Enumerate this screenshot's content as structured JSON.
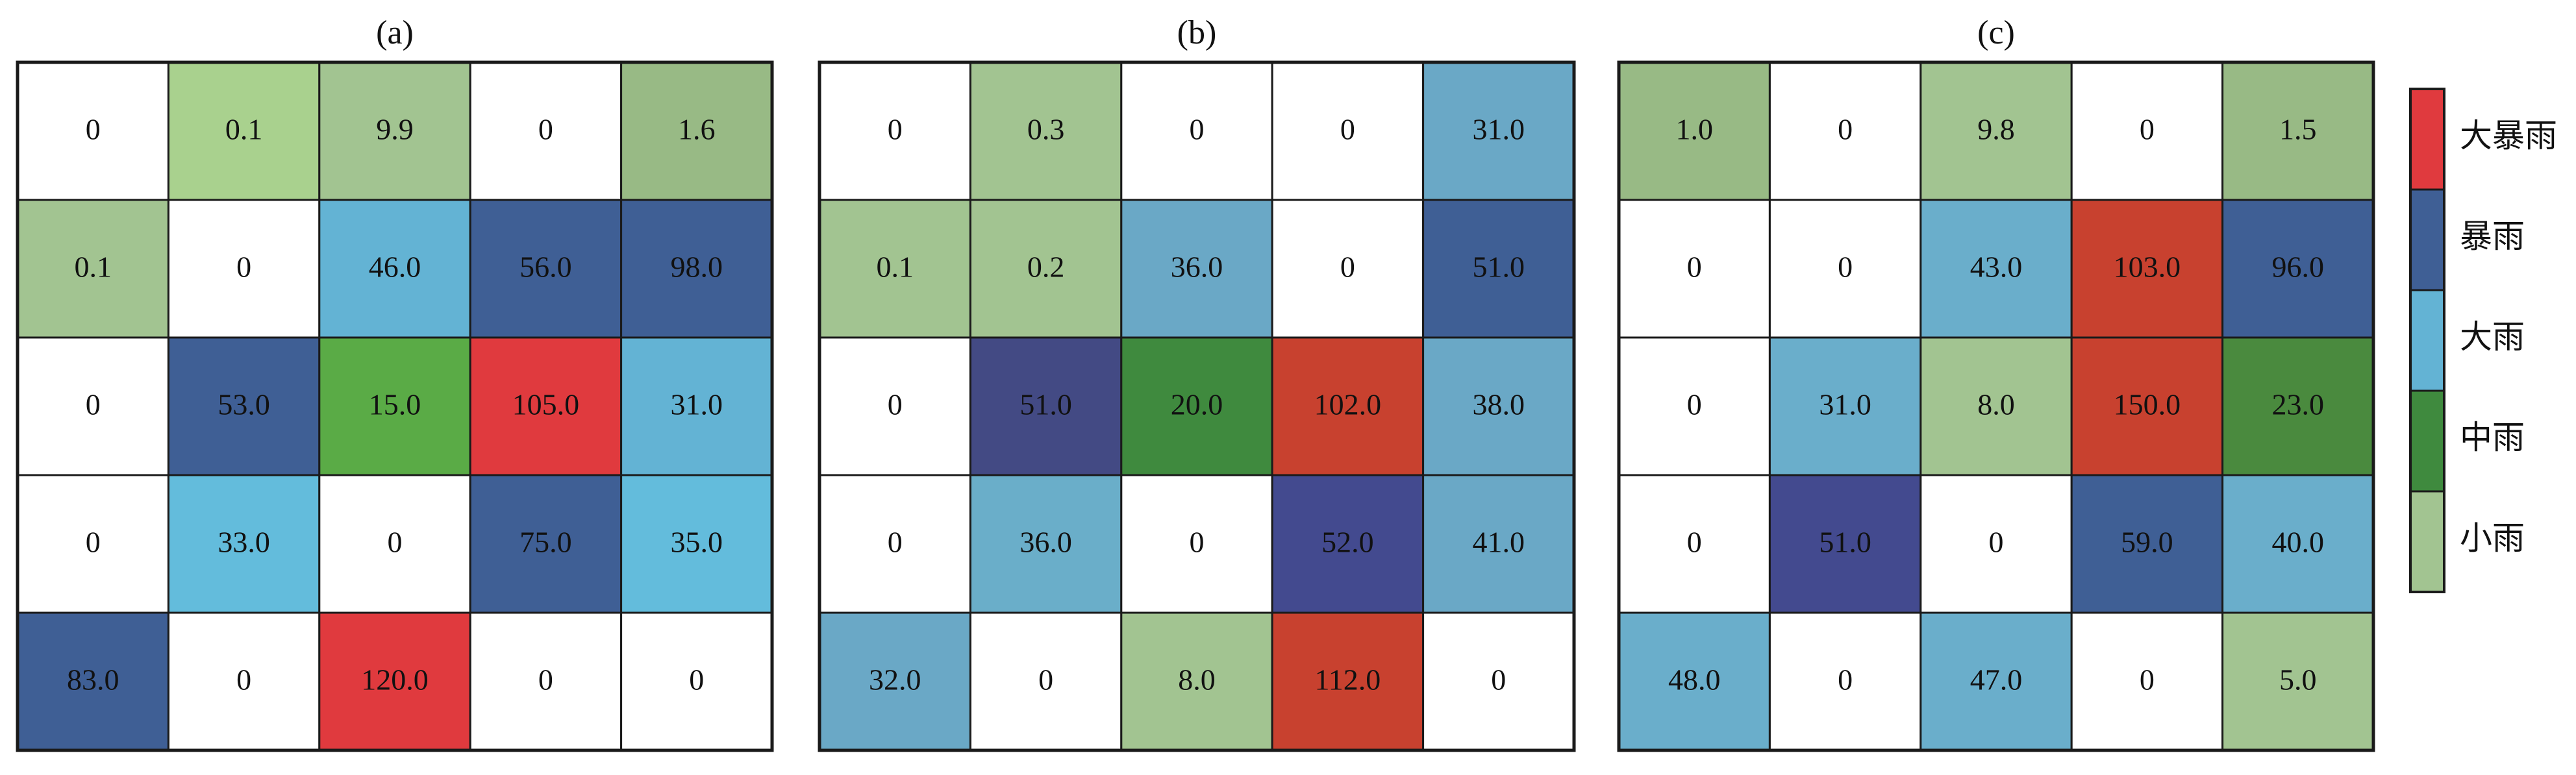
{
  "chart_data": {
    "type": "heatmap",
    "panels": [
      {
        "label": "(a)",
        "rows": [
          [
            "0",
            "0.1",
            "9.9",
            "0",
            "1.6"
          ],
          [
            "0.1",
            "0",
            "46.0",
            "56.0",
            "98.0"
          ],
          [
            "0",
            "53.0",
            "15.0",
            "105.0",
            "31.0"
          ],
          [
            "0",
            "33.0",
            "0",
            "75.0",
            "35.0"
          ],
          [
            "83.0",
            "0",
            "120.0",
            "0",
            "0"
          ]
        ],
        "colors": [
          [
            "#ffffff",
            "#a9d18e",
            "#a2c491",
            "#ffffff",
            "#98ba85"
          ],
          [
            "#a2c491",
            "#ffffff",
            "#63b3d4",
            "#3f5f95",
            "#3f5f95"
          ],
          [
            "#ffffff",
            "#3f5f95",
            "#5aab46",
            "#e03a3e",
            "#63b3d4"
          ],
          [
            "#ffffff",
            "#63bcdc",
            "#ffffff",
            "#3f5f95",
            "#63bcdc"
          ],
          [
            "#3f5f95",
            "#ffffff",
            "#e03a3e",
            "#ffffff",
            "#ffffff"
          ]
        ]
      },
      {
        "label": "(b)",
        "rows": [
          [
            "0",
            "0.3",
            "0",
            "0",
            "31.0"
          ],
          [
            "0.1",
            "0.2",
            "36.0",
            "0",
            "51.0"
          ],
          [
            "0",
            "51.0",
            "20.0",
            "102.0",
            "38.0"
          ],
          [
            "0",
            "36.0",
            "0",
            "52.0",
            "41.0"
          ],
          [
            "32.0",
            "0",
            "8.0",
            "112.0",
            "0"
          ]
        ],
        "colors": [
          [
            "#ffffff",
            "#a2c491",
            "#ffffff",
            "#ffffff",
            "#6aa8c6"
          ],
          [
            "#a2c491",
            "#a2c491",
            "#6aa8c6",
            "#ffffff",
            "#3f5f95"
          ],
          [
            "#ffffff",
            "#434a84",
            "#3f8a3e",
            "#c8412f",
            "#6aa8c6"
          ],
          [
            "#ffffff",
            "#6aaec9",
            "#ffffff",
            "#434a8f",
            "#6aa8c6"
          ],
          [
            "#6aa8c6",
            "#ffffff",
            "#a2c491",
            "#c8412f",
            "#ffffff"
          ]
        ]
      },
      {
        "label": "(c)",
        "rows": [
          [
            "1.0",
            "0",
            "9.8",
            "0",
            "1.5"
          ],
          [
            "0",
            "0",
            "43.0",
            "103.0",
            "96.0"
          ],
          [
            "0",
            "31.0",
            "8.0",
            "150.0",
            "23.0"
          ],
          [
            "0",
            "51.0",
            "0",
            "59.0",
            "40.0"
          ],
          [
            "48.0",
            "0",
            "47.0",
            "0",
            "5.0"
          ]
        ],
        "colors": [
          [
            "#98ba85",
            "#ffffff",
            "#a2c491",
            "#ffffff",
            "#98ba85"
          ],
          [
            "#ffffff",
            "#ffffff",
            "#6aaecb",
            "#c8412f",
            "#3f5f95"
          ],
          [
            "#ffffff",
            "#6aaecb",
            "#a2c491",
            "#c8412f",
            "#4a8a3e"
          ],
          [
            "#ffffff",
            "#434a8f",
            "#ffffff",
            "#3f5f95",
            "#6aaecb"
          ],
          [
            "#6aaecb",
            "#ffffff",
            "#6aaecb",
            "#ffffff",
            "#a2c491"
          ]
        ]
      }
    ],
    "legend": {
      "placement": "right",
      "entries": [
        {
          "label": "大暴雨",
          "color": "#e03a3e"
        },
        {
          "label": "暴雨",
          "color": "#3f5f95"
        },
        {
          "label": "大雨",
          "color": "#63b3d4"
        },
        {
          "label": "中雨",
          "color": "#3f8a3e"
        },
        {
          "label": "小雨",
          "color": "#a2c491"
        }
      ]
    }
  }
}
